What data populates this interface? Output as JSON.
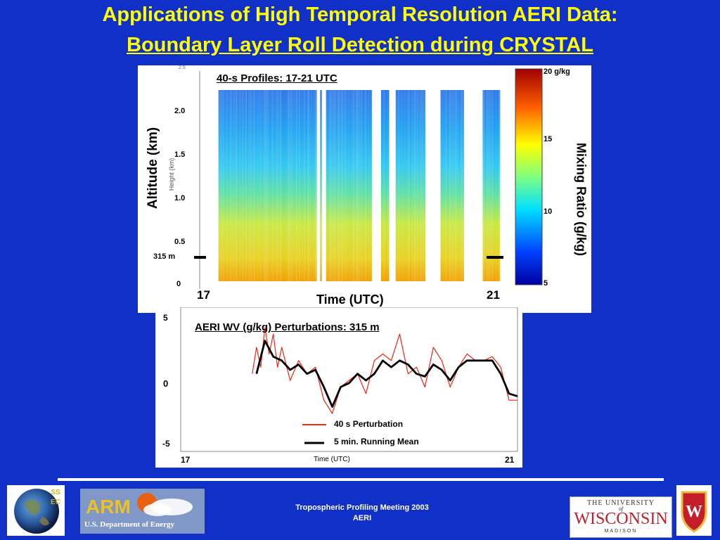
{
  "slide": {
    "title_line1": "Applications of High Temporal Resolution AERI Data:",
    "title_line2": "Boundary Layer Roll Detection during CRYSTAL"
  },
  "top_panel": {
    "title": "40-s Profiles: 17-21 UTC",
    "ylabel": "Altitude (km)",
    "ylabel_small": "Height (km)",
    "xlabel": "Time (UTC)",
    "y_ticks": [
      "2.0",
      "1.5",
      "1.0",
      "0.5",
      "0"
    ],
    "top_tick": "2.5",
    "marker_label": "315 m",
    "x_start": "17",
    "x_end": "21",
    "colorbar_label": "Mixing Ratio (g/kg)",
    "colorbar_ticks": [
      "20 g/kg",
      "15",
      "10",
      "5"
    ],
    "colors": {
      "low": "#0000a0",
      "mid": "#20c0ff",
      "mid2": "#ffff20",
      "high": "#a00000"
    }
  },
  "bottom_panel": {
    "title": "AERI WV (g/kg) Perturbations: 315 m",
    "y_ticks": [
      "5",
      "0",
      "-5"
    ],
    "xlabel": "Time (UTC)",
    "x_start": "17",
    "x_end": "21",
    "legend": [
      {
        "label": "40 s Perturbation",
        "color": "#ff2010"
      },
      {
        "label": "5 min. Running Mean",
        "color": "#000000"
      }
    ]
  },
  "chart_data": [
    {
      "type": "heatmap",
      "title": "40-s Profiles: 17-21 UTC",
      "xlabel": "Time (UTC)",
      "ylabel": "Altitude (km)",
      "xlim": [
        17,
        21
      ],
      "ylim": [
        0,
        2.5
      ],
      "colorbar": {
        "label": "Mixing Ratio (g/kg)",
        "range": [
          5,
          20
        ]
      },
      "data_gaps_utc": [
        [
          17.0,
          17.08
        ],
        [
          18.45,
          18.5
        ],
        [
          18.52,
          18.58
        ],
        [
          19.22,
          19.35
        ],
        [
          19.45,
          19.55
        ],
        [
          19.96,
          20.17
        ],
        [
          20.5,
          20.76
        ]
      ],
      "profile_mixing_ratio_g_per_kg": {
        "altitude_km": [
          0.0,
          0.3,
          0.5,
          1.0,
          1.5,
          2.0,
          2.3
        ],
        "value": [
          17.5,
          15.5,
          14.5,
          13.0,
          11.5,
          10.5,
          10.0
        ]
      }
    },
    {
      "type": "line",
      "title": "AERI WV (g/kg) Perturbations: 315 m",
      "xlabel": "Time (UTC)",
      "xlim": [
        17,
        21
      ],
      "ylim": [
        -5,
        5
      ],
      "series": [
        {
          "name": "40 s Perturbation",
          "x": [
            17.85,
            17.9,
            17.95,
            18.0,
            18.05,
            18.1,
            18.15,
            18.2,
            18.3,
            18.4,
            18.5,
            18.6,
            18.7,
            18.8,
            18.9,
            19.0,
            19.1,
            19.2,
            19.3,
            19.4,
            19.5,
            19.6,
            19.7,
            19.8,
            19.9,
            20.0,
            20.1,
            20.2,
            20.3,
            20.4,
            20.5,
            20.6,
            20.7,
            20.8,
            20.9,
            21.0
          ],
          "y": [
            0.5,
            2.5,
            1.0,
            4.0,
            2.0,
            3.5,
            1.0,
            2.5,
            0.0,
            1.5,
            0.5,
            1.0,
            -1.5,
            -2.5,
            -0.5,
            0.0,
            0.5,
            -1.0,
            1.5,
            2.0,
            1.5,
            3.5,
            0.5,
            1.0,
            -0.5,
            2.5,
            1.5,
            -0.5,
            1.0,
            2.0,
            1.5,
            1.5,
            1.8,
            1.0,
            -1.5,
            -1.5
          ]
        },
        {
          "name": "5 min. Running Mean",
          "x": [
            17.9,
            18.0,
            18.1,
            18.2,
            18.3,
            18.4,
            18.5,
            18.6,
            18.7,
            18.8,
            18.9,
            19.0,
            19.1,
            19.2,
            19.3,
            19.4,
            19.5,
            19.6,
            19.7,
            19.8,
            19.9,
            20.0,
            20.1,
            20.2,
            20.3,
            20.4,
            20.5,
            20.6,
            20.7,
            20.8,
            20.9,
            21.0
          ],
          "y": [
            0.5,
            3.0,
            1.8,
            1.5,
            0.8,
            1.2,
            0.5,
            0.8,
            -0.5,
            -2.0,
            -0.5,
            -0.2,
            0.5,
            0.0,
            0.5,
            1.5,
            1.0,
            1.5,
            1.2,
            0.5,
            0.3,
            1.2,
            0.8,
            0.0,
            1.0,
            1.5,
            1.5,
            1.5,
            1.5,
            0.5,
            -1.0,
            -1.2
          ]
        }
      ]
    }
  ],
  "footer": {
    "line1": "Tropospheric Profiling Meeting 2003",
    "line2": "AERI",
    "ssec_text": "SSEC",
    "arm_text": "ARM",
    "doe_text": "U.S. Department of Energy",
    "uw_line1": "THE UNIVERSITY",
    "uw_line2": "of",
    "uw_line3": "WISCONSIN",
    "uw_line4": "MADISON"
  }
}
